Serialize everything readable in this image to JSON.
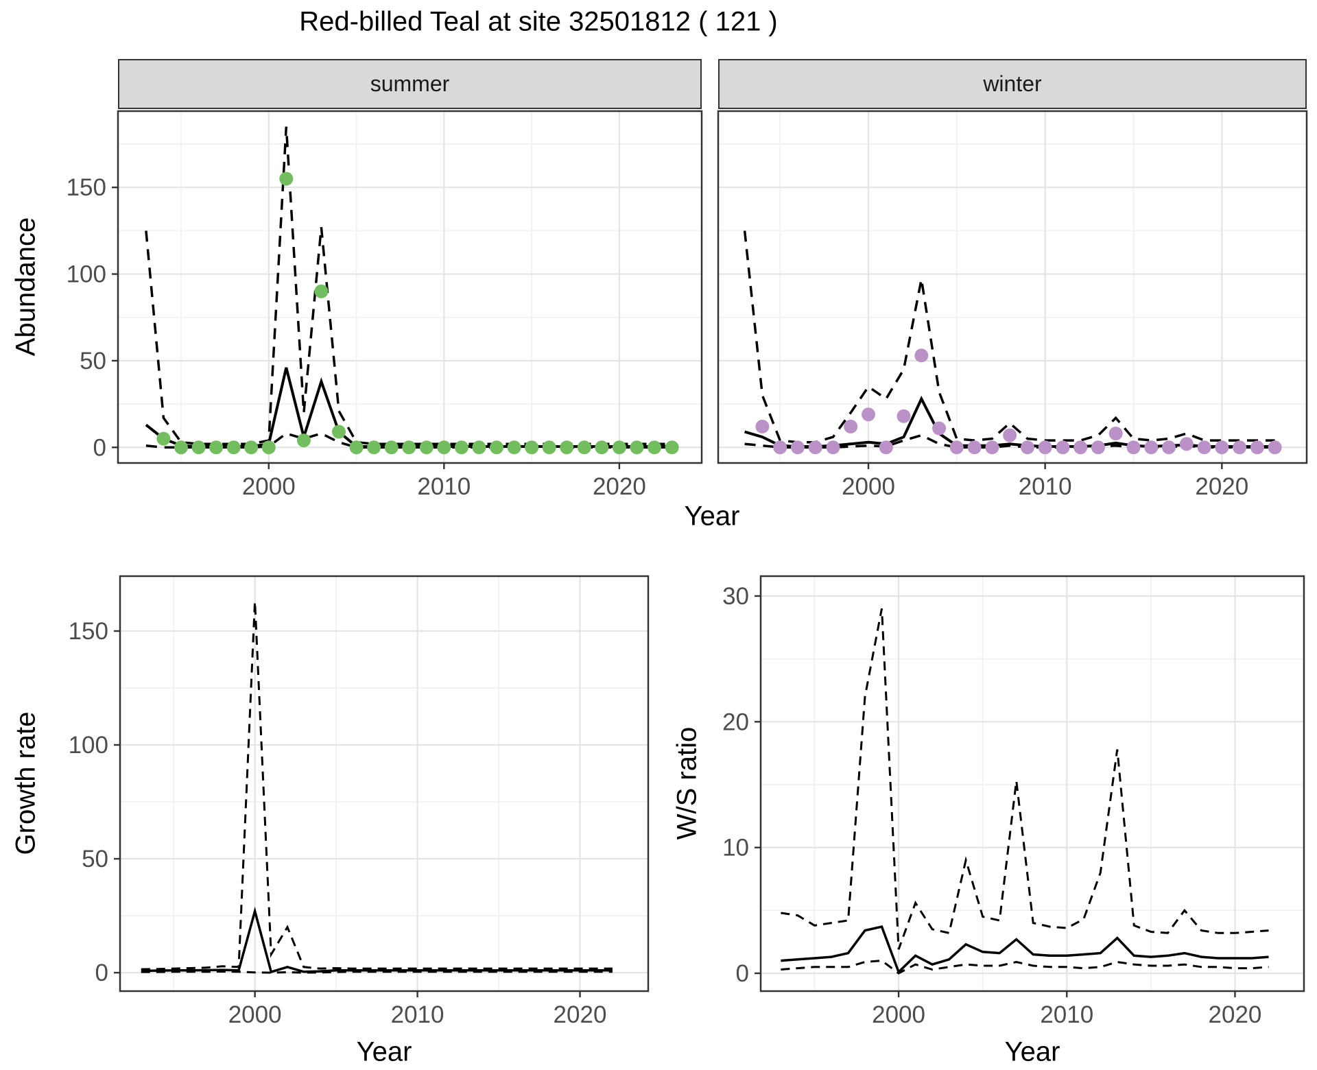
{
  "title": "Red-billed Teal at site 32501812 ( 121 )",
  "labels": {
    "shared_x_top": "Year"
  },
  "colors": {
    "summer_point": "#72BE5E",
    "winter_point": "#BB92C8",
    "line": "#000000",
    "strip_bg": "#D9D9D9",
    "panel_border": "#333333",
    "grid_major": "#E4E4E4",
    "grid_minor": "#F1F1F1",
    "tick_label": "#4D4D4D",
    "background": "#FFFFFF"
  },
  "chart_data": [
    {
      "id": "abundance-summer",
      "type": "line",
      "facet": "summer",
      "xlabel": "Year",
      "ylabel": "Abundance",
      "legend_position": "none",
      "grid": "major+minor",
      "xlim": [
        1991.4,
        2024.7
      ],
      "ylim": [
        -9,
        194
      ],
      "xticks": [
        2000,
        2010,
        2020
      ],
      "yticks": [
        0,
        50,
        100,
        150
      ],
      "x_minor": [
        1995,
        2005,
        2015
      ],
      "y_minor": [
        25,
        75,
        125,
        175
      ],
      "years": [
        1993,
        1994,
        1995,
        1996,
        1997,
        1998,
        1999,
        2000,
        2001,
        2002,
        2003,
        2004,
        2005,
        2006,
        2007,
        2008,
        2009,
        2010,
        2011,
        2012,
        2013,
        2014,
        2015,
        2016,
        2017,
        2018,
        2019,
        2020,
        2021,
        2022,
        2023
      ],
      "series": [
        {
          "name": "mean",
          "style": "solid",
          "values": [
            13,
            5,
            1,
            0.5,
            0.5,
            0.5,
            0.5,
            2,
            46,
            6,
            38,
            9,
            0.5,
            0.5,
            0.5,
            0.5,
            0.5,
            0.5,
            0.5,
            0.5,
            0.5,
            0.5,
            0.5,
            0.5,
            0.5,
            0.5,
            0.5,
            0.5,
            0.5,
            0.5,
            0.5
          ]
        },
        {
          "name": "upper_ci",
          "style": "dashed",
          "values": [
            125,
            17,
            3,
            2,
            2,
            2,
            2,
            4,
            185,
            20,
            127,
            21,
            3,
            2,
            2,
            2,
            2,
            2,
            2,
            2,
            2,
            2,
            2,
            2,
            2,
            2,
            2,
            2,
            2,
            2,
            2
          ]
        },
        {
          "name": "lower_ci",
          "style": "dashed",
          "values": [
            1,
            0,
            0,
            0,
            0,
            0,
            0,
            0.5,
            8,
            5,
            8,
            3,
            0,
            0,
            0,
            0,
            0,
            0,
            0,
            0,
            0,
            0,
            0,
            0,
            0,
            0,
            0,
            0,
            0,
            0,
            0
          ]
        }
      ],
      "obs_years": [
        1994,
        1995,
        1996,
        1997,
        1998,
        1999,
        2000,
        2001,
        2002,
        2003,
        2004,
        2005,
        2006,
        2007,
        2008,
        2009,
        2010,
        2011,
        2012,
        2013,
        2014,
        2015,
        2016,
        2017,
        2018,
        2019,
        2020,
        2021,
        2022,
        2023
      ],
      "obs_values": [
        5,
        0,
        0,
        0,
        0,
        0,
        0,
        155,
        4,
        90,
        9,
        0,
        0,
        0,
        0,
        0,
        0,
        0,
        0,
        0,
        0,
        0,
        0,
        0,
        0,
        0,
        0,
        0,
        0,
        0
      ],
      "point_color": "#72BE5E"
    },
    {
      "id": "abundance-winter",
      "type": "line",
      "facet": "winter",
      "xlabel": "Year",
      "ylabel": "Abundance",
      "legend_position": "none",
      "grid": "major+minor",
      "xlim": [
        1991.5,
        2024.8
      ],
      "ylim": [
        -9,
        194
      ],
      "xticks": [
        2000,
        2010,
        2020
      ],
      "yticks": [
        0,
        50,
        100,
        150
      ],
      "x_minor": [
        1995,
        2005,
        2015
      ],
      "y_minor": [
        25,
        75,
        125,
        175
      ],
      "years": [
        1993,
        1994,
        1995,
        1996,
        1997,
        1998,
        1999,
        2000,
        2001,
        2002,
        2003,
        2004,
        2005,
        2006,
        2007,
        2008,
        2009,
        2010,
        2011,
        2012,
        2013,
        2014,
        2015,
        2016,
        2017,
        2018,
        2019,
        2020,
        2021,
        2022,
        2023
      ],
      "series": [
        {
          "name": "mean",
          "style": "solid",
          "values": [
            9,
            6,
            1,
            0.5,
            0.5,
            1,
            2,
            3,
            2,
            6,
            28,
            8,
            1,
            1,
            1,
            2,
            1,
            0.5,
            0.5,
            0.5,
            1,
            2.5,
            1,
            0.5,
            1,
            1.5,
            0.5,
            0.5,
            0.5,
            0.5,
            0.5
          ]
        },
        {
          "name": "upper_ci",
          "style": "dashed",
          "values": [
            125,
            30,
            4,
            3,
            3,
            6,
            20,
            35,
            28,
            45,
            97,
            32,
            5,
            4,
            5,
            14,
            5,
            4,
            4,
            4,
            7,
            17,
            5,
            4,
            5,
            8,
            4,
            4,
            4,
            4,
            4
          ]
        },
        {
          "name": "lower_ci",
          "style": "dashed",
          "values": [
            2,
            1,
            0,
            0,
            0,
            0,
            0.5,
            1,
            0.5,
            4,
            7,
            2,
            0,
            0,
            0,
            1,
            0,
            0,
            0,
            0,
            0.5,
            1,
            0,
            0,
            0,
            1,
            0,
            0,
            0,
            0,
            0
          ]
        }
      ],
      "obs_years": [
        1994,
        1995,
        1996,
        1997,
        1998,
        1999,
        2000,
        2001,
        2002,
        2003,
        2004,
        2005,
        2006,
        2007,
        2008,
        2009,
        2010,
        2011,
        2012,
        2013,
        2014,
        2015,
        2016,
        2017,
        2018,
        2019,
        2020,
        2021,
        2022,
        2023
      ],
      "obs_values": [
        12,
        0,
        0,
        0,
        0,
        12,
        19,
        0,
        18,
        53,
        11,
        0,
        0,
        0,
        7,
        0,
        0,
        0,
        0,
        0,
        8,
        0,
        0,
        0,
        2,
        0,
        0,
        0,
        0,
        0
      ],
      "point_color": "#BB92C8"
    },
    {
      "id": "growth-rate",
      "type": "line",
      "facet": "",
      "xlabel": "Year",
      "ylabel": "Growth rate",
      "legend_position": "none",
      "grid": "major+minor",
      "xlim": [
        1991.7,
        2024.2
      ],
      "ylim": [
        -8.1,
        174.1
      ],
      "xticks": [
        2000,
        2010,
        2020
      ],
      "yticks": [
        0,
        50,
        100,
        150
      ],
      "x_minor": [
        1995,
        2005,
        2015
      ],
      "y_minor": [
        25,
        75,
        125
      ],
      "years": [
        1993,
        1994,
        1995,
        1996,
        1997,
        1998,
        1999,
        2000,
        2001,
        2002,
        2003,
        2004,
        2005,
        2006,
        2007,
        2008,
        2009,
        2010,
        2011,
        2012,
        2013,
        2014,
        2015,
        2016,
        2017,
        2018,
        2019,
        2020,
        2021,
        2022
      ],
      "series": [
        {
          "name": "mean",
          "style": "solid",
          "values": [
            0.8,
            0.9,
            1,
            1,
            1.1,
            1.2,
            1,
            27,
            0.3,
            2.5,
            0.4,
            0.6,
            1,
            1,
            1,
            1,
            1,
            1,
            1,
            1,
            1,
            1,
            1,
            1,
            1,
            1,
            1,
            1,
            1,
            1
          ]
        },
        {
          "name": "upper_ci",
          "style": "dashed",
          "values": [
            1.5,
            1.6,
            1.8,
            2,
            2.2,
            2.8,
            2.5,
            163,
            8,
            20,
            2.5,
            1.8,
            2,
            1.8,
            1.8,
            1.8,
            1.8,
            1.8,
            1.8,
            1.8,
            1.8,
            1.8,
            1.8,
            1.8,
            1.8,
            1.8,
            1.8,
            1.8,
            1.8,
            1.8
          ]
        },
        {
          "name": "lower_ci",
          "style": "dashed",
          "values": [
            0.3,
            0.3,
            0.4,
            0.4,
            0.4,
            0.5,
            0.4,
            0.1,
            0,
            0.2,
            0,
            0.1,
            0.3,
            0.4,
            0.4,
            0.4,
            0.4,
            0.4,
            0.4,
            0.4,
            0.4,
            0.4,
            0.4,
            0.4,
            0.4,
            0.4,
            0.4,
            0.4,
            0.4,
            0.4
          ]
        }
      ],
      "obs_years": [],
      "obs_values": [],
      "point_color": "#000000"
    },
    {
      "id": "ws-ratio",
      "type": "line",
      "facet": "",
      "xlabel": "Year",
      "ylabel": "W/S ratio",
      "legend_position": "none",
      "grid": "major+minor",
      "xlim": [
        1991.8,
        2024.1
      ],
      "ylim": [
        -1.42,
        31.58
      ],
      "xticks": [
        2000,
        2010,
        2020
      ],
      "yticks": [
        0,
        10,
        20,
        30
      ],
      "x_minor": [
        1995,
        2005,
        2015
      ],
      "y_minor": [
        5,
        15,
        25
      ],
      "years": [
        1993,
        1994,
        1995,
        1996,
        1997,
        1998,
        1999,
        2000,
        2001,
        2002,
        2003,
        2004,
        2005,
        2006,
        2007,
        2008,
        2009,
        2010,
        2011,
        2012,
        2013,
        2014,
        2015,
        2016,
        2017,
        2018,
        2019,
        2020,
        2021,
        2022
      ],
      "series": [
        {
          "name": "mean",
          "style": "solid",
          "values": [
            1.0,
            1.1,
            1.2,
            1.3,
            1.6,
            3.4,
            3.7,
            0.1,
            1.4,
            0.7,
            1.1,
            2.3,
            1.7,
            1.6,
            2.7,
            1.5,
            1.4,
            1.4,
            1.5,
            1.6,
            2.8,
            1.4,
            1.3,
            1.4,
            1.6,
            1.3,
            1.2,
            1.2,
            1.2,
            1.3
          ]
        },
        {
          "name": "upper_ci",
          "style": "dashed",
          "values": [
            4.8,
            4.6,
            3.8,
            4.0,
            4.2,
            22,
            29,
            1.9,
            5.6,
            3.5,
            3.2,
            9,
            4.5,
            4.2,
            15.3,
            4.0,
            3.7,
            3.6,
            4.3,
            8,
            17.8,
            3.8,
            3.3,
            3.2,
            5,
            3.4,
            3.2,
            3.2,
            3.3,
            3.4
          ]
        },
        {
          "name": "lower_ci",
          "style": "dashed",
          "values": [
            0.3,
            0.4,
            0.5,
            0.5,
            0.5,
            0.9,
            1.0,
            0.0,
            0.7,
            0.3,
            0.5,
            0.7,
            0.6,
            0.6,
            0.9,
            0.6,
            0.5,
            0.5,
            0.4,
            0.5,
            0.9,
            0.7,
            0.6,
            0.6,
            0.7,
            0.5,
            0.5,
            0.4,
            0.4,
            0.5
          ]
        }
      ],
      "obs_years": [],
      "obs_values": [],
      "point_color": "#000000"
    }
  ]
}
